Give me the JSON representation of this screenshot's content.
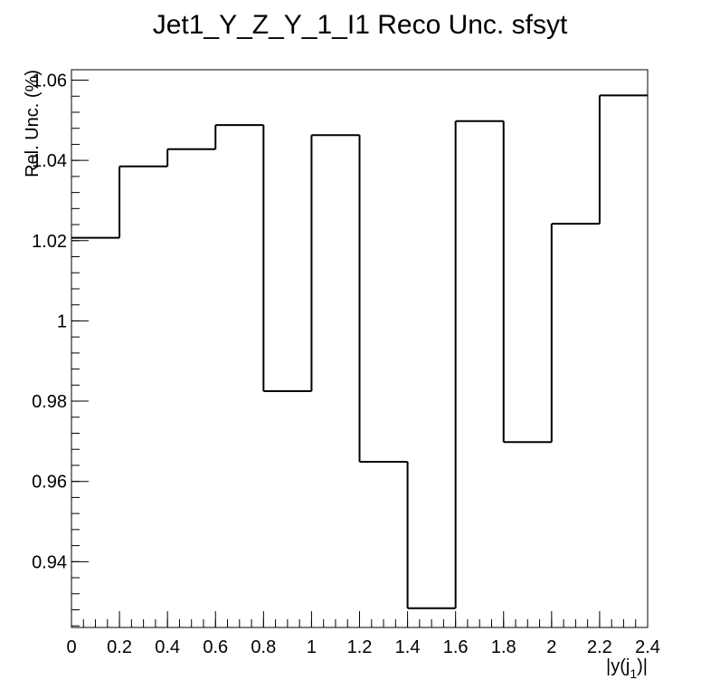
{
  "chart_data": {
    "type": "step",
    "title": "Jet1_Y_Z_Y_1_I1 Reco Unc. sfsyt",
    "xlabel": "|y(j",
    "xlabel_sub": "1",
    "xlabel_end": ")|",
    "ylabel": "Rel. Unc. (%)",
    "xlim": [
      0,
      2.4
    ],
    "ylim": [
      0.9236,
      1.0626
    ],
    "bin_edges": [
      0,
      0.2,
      0.4,
      0.6,
      0.8,
      1.0,
      1.2,
      1.4,
      1.6,
      1.8,
      2.0,
      2.2,
      2.4
    ],
    "values": [
      1.0207,
      1.0385,
      1.0428,
      1.0488,
      0.9825,
      1.0463,
      0.9649,
      0.9284,
      1.0498,
      0.9698,
      1.0242,
      1.0562
    ],
    "x_ticks": [
      {
        "value": 0,
        "label": "0"
      },
      {
        "value": 0.2,
        "label": "0.2"
      },
      {
        "value": 0.4,
        "label": "0.4"
      },
      {
        "value": 0.6,
        "label": "0.6"
      },
      {
        "value": 0.8,
        "label": "0.8"
      },
      {
        "value": 1.0,
        "label": "1"
      },
      {
        "value": 1.2,
        "label": "1.2"
      },
      {
        "value": 1.4,
        "label": "1.4"
      },
      {
        "value": 1.6,
        "label": "1.6"
      },
      {
        "value": 1.8,
        "label": "1.8"
      },
      {
        "value": 2.0,
        "label": "2"
      },
      {
        "value": 2.2,
        "label": "2.2"
      },
      {
        "value": 2.4,
        "label": "2.4"
      }
    ],
    "y_ticks": [
      {
        "value": 0.94,
        "label": "0.94"
      },
      {
        "value": 0.96,
        "label": "0.96"
      },
      {
        "value": 0.98,
        "label": "0.98"
      },
      {
        "value": 1.0,
        "label": "1"
      },
      {
        "value": 1.02,
        "label": "1.02"
      },
      {
        "value": 1.04,
        "label": "1.04"
      },
      {
        "value": 1.06,
        "label": "1.06"
      }
    ],
    "x_minor_step": 0.05,
    "y_minor_step": 0.004,
    "grid": false,
    "legend": "none",
    "line_color": "#000000",
    "frame_color": "#000000",
    "background": "#ffffff"
  }
}
